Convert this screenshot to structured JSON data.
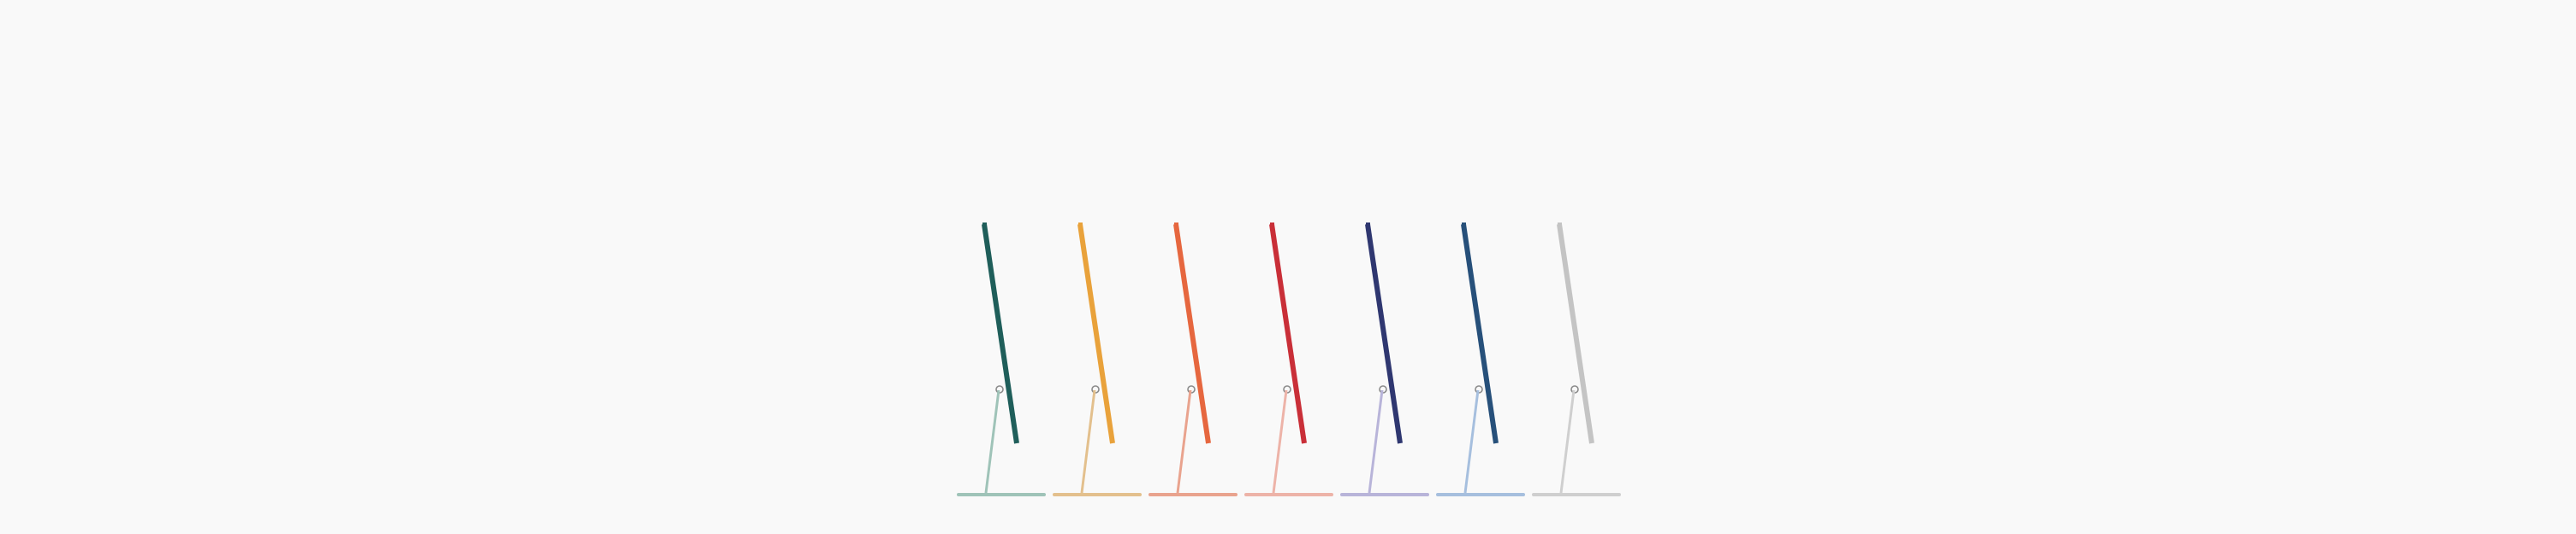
{
  "product_lineup": {
    "items": [
      {
        "color_name": "green",
        "display": "#1f5e5a",
        "stand": "#9fc3b8"
      },
      {
        "color_name": "yellow",
        "display": "#e9a23b",
        "stand": "#e3c08d"
      },
      {
        "color_name": "orange",
        "display": "#e6673f",
        "stand": "#e9a38e"
      },
      {
        "color_name": "pink",
        "display": "#c92f38",
        "stand": "#edb3a8"
      },
      {
        "color_name": "purple",
        "display": "#2f3770",
        "stand": "#b8b4d9"
      },
      {
        "color_name": "blue",
        "display": "#27507a",
        "stand": "#a6bfde"
      },
      {
        "color_name": "silver",
        "display": "#c4c4c4",
        "stand": "#cfcfcf"
      }
    ]
  }
}
